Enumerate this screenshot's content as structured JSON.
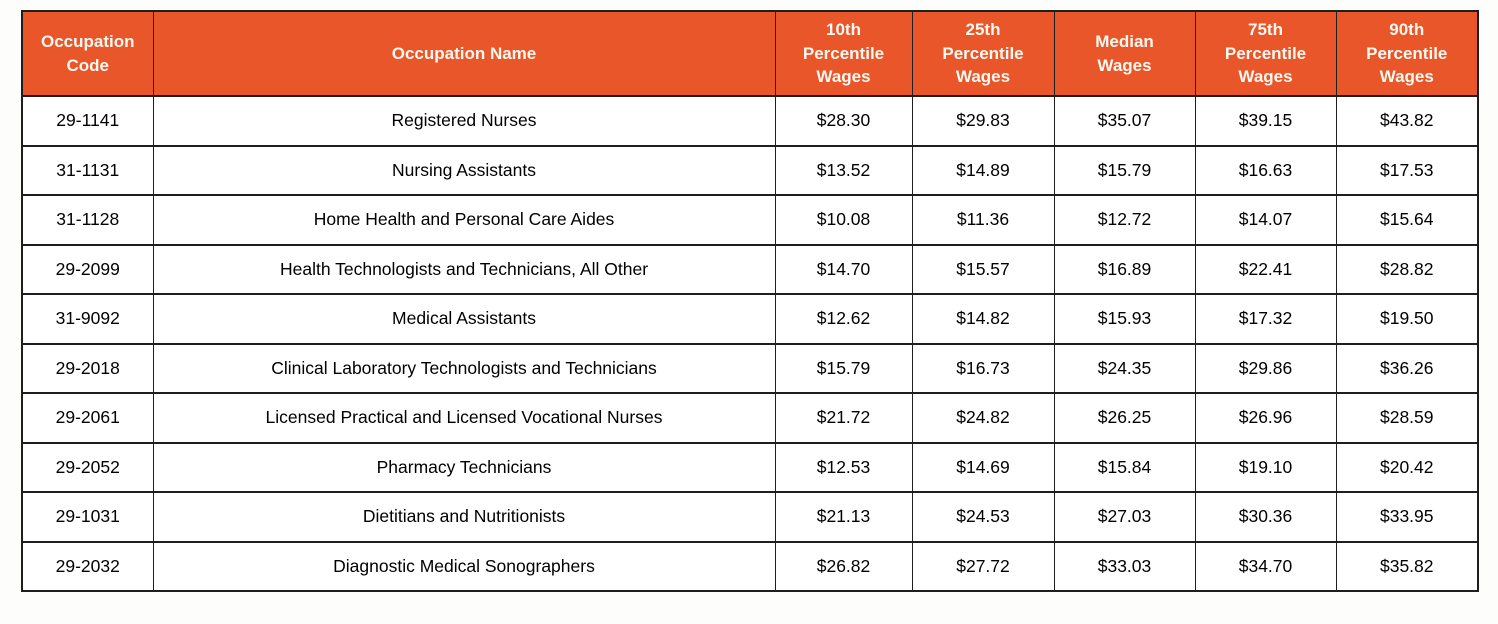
{
  "colors": {
    "page_bg": "#FDFDFB",
    "header_bg": "#E8562A",
    "header_text": "#FDF8F0",
    "border": "#1E1E1E",
    "row_bg": "#FFFFFF",
    "cell_text": "#000000"
  },
  "chart_data": {
    "type": "table",
    "columns": [
      "Occupation Code",
      "Occupation Name",
      "10th Percentile Wages",
      "25th Percentile Wages",
      "Median Wages",
      "75th Percentile Wages",
      "90th Percentile Wages"
    ],
    "column_keys": [
      "occupation-code",
      "occupation-name",
      "p10-percentile-wages",
      "p25-percentile-wages",
      "median-wages",
      "p75-percentile-wages",
      "p90-percentile-wages"
    ],
    "rows": [
      [
        "29-1141",
        "Registered Nurses",
        "$28.30",
        "$29.83",
        "$35.07",
        "$39.15",
        "$43.82"
      ],
      [
        "31-1131",
        "Nursing Assistants",
        "$13.52",
        "$14.89",
        "$15.79",
        "$16.63",
        "$17.53"
      ],
      [
        "31-1128",
        "Home Health and Personal Care Aides",
        "$10.08",
        "$11.36",
        "$12.72",
        "$14.07",
        "$15.64"
      ],
      [
        "29-2099",
        "Health Technologists and Technicians, All Other",
        "$14.70",
        "$15.57",
        "$16.89",
        "$22.41",
        "$28.82"
      ],
      [
        "31-9092",
        "Medical Assistants",
        "$12.62",
        "$14.82",
        "$15.93",
        "$17.32",
        "$19.50"
      ],
      [
        "29-2018",
        "Clinical Laboratory Technologists and Technicians",
        "$15.79",
        "$16.73",
        "$24.35",
        "$29.86",
        "$36.26"
      ],
      [
        "29-2061",
        "Licensed Practical and Licensed Vocational Nurses",
        "$21.72",
        "$24.82",
        "$26.25",
        "$26.96",
        "$28.59"
      ],
      [
        "29-2052",
        "Pharmacy Technicians",
        "$12.53",
        "$14.69",
        "$15.84",
        "$19.10",
        "$20.42"
      ],
      [
        "29-1031",
        "Dietitians and Nutritionists",
        "$21.13",
        "$24.53",
        "$27.03",
        "$30.36",
        "$33.95"
      ],
      [
        "29-2032",
        "Diagnostic Medical Sonographers",
        "$26.82",
        "$27.72",
        "$33.03",
        "$34.70",
        "$35.82"
      ]
    ]
  }
}
